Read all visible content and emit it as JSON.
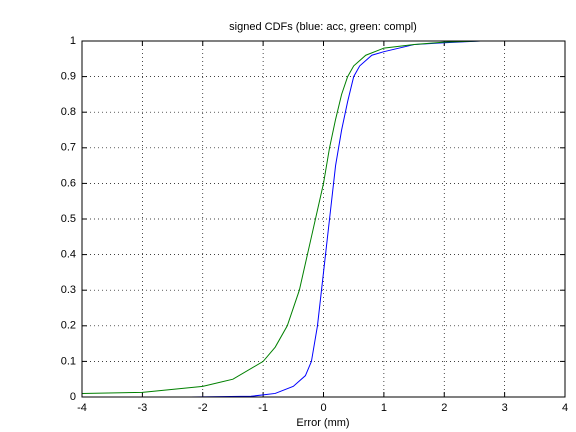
{
  "chart_data": {
    "type": "line",
    "title": "signed CDFs (blue: acc, green: compl)",
    "x_label": "Error (mm)",
    "xlim": [
      -4,
      4
    ],
    "xticks": [
      -4,
      -3,
      -2,
      -1,
      0,
      1,
      2,
      3,
      4
    ],
    "ylim": [
      0,
      1
    ],
    "yticks": [
      0,
      0.1,
      0.2,
      0.3,
      0.4,
      0.5,
      0.6,
      0.7,
      0.8,
      0.9,
      1
    ],
    "grid": true,
    "series": [
      {
        "name": "acc",
        "color": "#0000ff",
        "x": [
          -2.2,
          -1.2,
          -0.8,
          -0.5,
          -0.3,
          -0.2,
          -0.1,
          0,
          0.1,
          0.2,
          0.3,
          0.4,
          0.5,
          0.6,
          0.8,
          1,
          1.5,
          2,
          2.6
        ],
        "values": [
          0,
          0.002,
          0.01,
          0.03,
          0.06,
          0.1,
          0.2,
          0.35,
          0.5,
          0.65,
          0.75,
          0.83,
          0.9,
          0.93,
          0.96,
          0.97,
          0.99,
          0.995,
          1
        ]
      },
      {
        "name": "compl",
        "color": "#008000",
        "x": [
          -4,
          -3,
          -2,
          -1.5,
          -1,
          -0.8,
          -0.6,
          -0.4,
          -0.2,
          0,
          0.1,
          0.2,
          0.3,
          0.4,
          0.5,
          0.7,
          1,
          1.5,
          2,
          2.6,
          4
        ],
        "values": [
          0.01,
          0.013,
          0.03,
          0.05,
          0.1,
          0.14,
          0.2,
          0.3,
          0.45,
          0.6,
          0.7,
          0.78,
          0.85,
          0.9,
          0.93,
          0.96,
          0.98,
          0.99,
          0.997,
          1,
          1
        ]
      }
    ]
  }
}
